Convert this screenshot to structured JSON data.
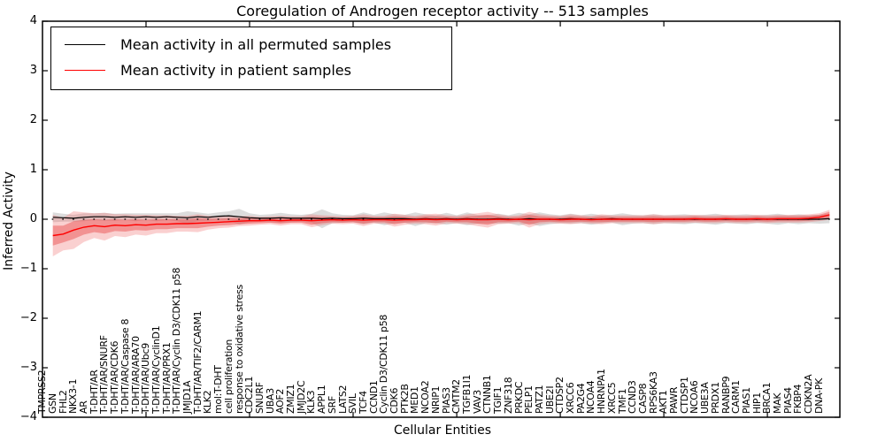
{
  "chart_data": {
    "type": "line",
    "title": "Coregulation of Androgen receptor activity -- 513 samples",
    "xlabel": "Cellular Entities",
    "ylabel": "Inferred Activity",
    "ylim": [
      -4,
      4
    ],
    "ytick_labels": [
      "4",
      "3",
      "2",
      "1",
      "0",
      "−1",
      "−2",
      "−3",
      "−4"
    ],
    "grid": false,
    "legend_position": "upper left",
    "zero_line": {
      "style": "dotted",
      "color": "#000000",
      "y": 0
    },
    "categories": [
      "TMPRSS2",
      "GSN",
      "FHL2",
      "NKX3-1",
      "AR",
      "T-DHT/AR",
      "T-DHT/AR/SNURF",
      "T-DHT/AR/CDK6",
      "T-DHT/AR/Caspase 8",
      "T-DHT/AR/ARA70",
      "T-DHT/AR/Ubc9",
      "T-DHT/AR/CyclinD1",
      "T-DHT/AR/PRX1",
      "T-DHT/AR/Cyclin D3/CDK11 p58",
      "JMJD1A",
      "T-DHT/AR/TIF2/CARM1",
      "KLK2",
      "mol:T-DHT",
      "cell proliferation",
      "response to oxidative stress",
      "CDC2L1",
      "SNURF",
      "UBA3",
      "AOF2",
      "ZMIZ1",
      "JMJD2C",
      "KLK3",
      "APPL1",
      "SRF",
      "LATS2",
      "SVIL",
      "TCF4",
      "CCND1",
      "Cyclin D3/CDK11 p58",
      "CDK6",
      "PTK2B",
      "MED1",
      "NCOA2",
      "NRIP1",
      "PIAS3",
      "CMTM2",
      "TGFB1I1",
      "VAV3",
      "CTNNB1",
      "TGIF1",
      "ZNF318",
      "PRKDC",
      "PELP1",
      "PATZ1",
      "UBE2I",
      "CTDSP2",
      "XRCC6",
      "PA2G4",
      "NCOA4",
      "HNRNPA1",
      "XRCC5",
      "TMF1",
      "CCND3",
      "CASP8",
      "RPS6KA3",
      "AKT1",
      "PAWR",
      "CTDSP1",
      "NCOA6",
      "UBE3A",
      "PRDX1",
      "RANBP9",
      "CARM1",
      "PIAS1",
      "HIP1",
      "BRCA1",
      "MAK",
      "PIAS4",
      "FKBP4",
      "CDKN2A",
      "DNA-PK"
    ],
    "series": [
      {
        "name": "Mean activity in all permuted samples",
        "color": "#000000",
        "band_color": "rgba(130,130,130,0.28)",
        "values": [
          0.04,
          0.03,
          0.02,
          0.04,
          0.05,
          0.05,
          0.04,
          0.05,
          0.04,
          0.05,
          0.04,
          0.05,
          0.04,
          0.03,
          0.05,
          0.04,
          0.06,
          0.07,
          0.05,
          0.03,
          0.02,
          0.02,
          0.03,
          0.02,
          0.02,
          0.02,
          0.01,
          0.02,
          0.01,
          0.01,
          0.02,
          0.01,
          0.01,
          0.01,
          0.01,
          0.0,
          0.01,
          0.0,
          0.01,
          0.0,
          0.01,
          0.0,
          0.0,
          0.01,
          0.0,
          0.0,
          0.01,
          0.0,
          0.0,
          0.0,
          0.01,
          0.0,
          0.0,
          0.0,
          0.01,
          0.0,
          0.0,
          0.0,
          0.0,
          0.0,
          0.0,
          0.0,
          0.0,
          0.0,
          0.0,
          0.0,
          0.0,
          0.0,
          0.0,
          0.0,
          0.0,
          0.0,
          0.0,
          0.0,
          0.0,
          0.01
        ],
        "band_halfwidth": [
          0.1,
          0.08,
          0.07,
          0.08,
          0.07,
          0.08,
          0.07,
          0.07,
          0.08,
          0.07,
          0.08,
          0.07,
          0.08,
          0.13,
          0.09,
          0.07,
          0.08,
          0.09,
          0.16,
          0.09,
          0.07,
          0.08,
          0.1,
          0.08,
          0.07,
          0.09,
          0.19,
          0.1,
          0.08,
          0.07,
          0.12,
          0.08,
          0.13,
          0.09,
          0.08,
          0.14,
          0.09,
          0.08,
          0.12,
          0.08,
          0.13,
          0.09,
          0.08,
          0.1,
          0.08,
          0.13,
          0.09,
          0.14,
          0.1,
          0.08,
          0.1,
          0.08,
          0.11,
          0.08,
          0.08,
          0.12,
          0.09,
          0.08,
          0.1,
          0.08,
          0.09,
          0.1,
          0.08,
          0.09,
          0.11,
          0.08,
          0.09,
          0.1,
          0.08,
          0.09,
          0.11,
          0.08,
          0.1,
          0.08,
          0.09,
          0.09
        ]
      },
      {
        "name": "Mean activity in patient samples",
        "color": "#ff0000",
        "band_inner_color": "rgba(230,60,60,0.42)",
        "band_outer_color": "rgba(240,100,100,0.30)",
        "values": [
          -0.33,
          -0.3,
          -0.22,
          -0.16,
          -0.13,
          -0.15,
          -0.12,
          -0.13,
          -0.11,
          -0.12,
          -0.1,
          -0.1,
          -0.09,
          -0.09,
          -0.08,
          -0.07,
          -0.06,
          -0.05,
          -0.04,
          -0.03,
          -0.03,
          -0.02,
          -0.03,
          -0.02,
          -0.02,
          -0.03,
          -0.02,
          -0.01,
          -0.02,
          -0.01,
          -0.02,
          -0.01,
          -0.01,
          -0.02,
          -0.01,
          -0.01,
          0.0,
          -0.01,
          0.0,
          -0.01,
          0.0,
          -0.01,
          -0.01,
          0.0,
          -0.01,
          0.0,
          -0.01,
          0.0,
          0.0,
          -0.01,
          0.0,
          0.0,
          -0.01,
          0.0,
          0.0,
          0.0,
          0.0,
          0.0,
          0.0,
          0.0,
          0.0,
          0.0,
          0.01,
          0.0,
          0.0,
          0.01,
          0.0,
          0.0,
          0.01,
          0.0,
          0.01,
          0.01,
          0.01,
          0.02,
          0.04,
          0.09
        ],
        "band_inner_halfwidth": [
          0.2,
          0.17,
          0.18,
          0.15,
          0.13,
          0.14,
          0.12,
          0.12,
          0.11,
          0.11,
          0.1,
          0.1,
          0.09,
          0.09,
          0.1,
          0.08,
          0.07,
          0.07,
          0.06,
          0.06,
          0.05,
          0.05,
          0.06,
          0.05,
          0.05,
          0.08,
          0.06,
          0.05,
          0.05,
          0.05,
          0.07,
          0.05,
          0.05,
          0.08,
          0.06,
          0.05,
          0.06,
          0.07,
          0.05,
          0.05,
          0.06,
          0.08,
          0.1,
          0.06,
          0.05,
          0.05,
          0.1,
          0.06,
          0.05,
          0.05,
          0.06,
          0.05,
          0.05,
          0.06,
          0.05,
          0.05,
          0.05,
          0.05,
          0.06,
          0.05,
          0.05,
          0.05,
          0.05,
          0.05,
          0.05,
          0.05,
          0.05,
          0.05,
          0.05,
          0.05,
          0.05,
          0.05,
          0.05,
          0.05,
          0.05,
          0.06
        ],
        "band_outer_halfwidth": [
          0.42,
          0.33,
          0.38,
          0.3,
          0.25,
          0.28,
          0.22,
          0.23,
          0.2,
          0.21,
          0.18,
          0.18,
          0.16,
          0.16,
          0.18,
          0.14,
          0.12,
          0.12,
          0.1,
          0.1,
          0.08,
          0.08,
          0.1,
          0.08,
          0.08,
          0.13,
          0.1,
          0.08,
          0.08,
          0.08,
          0.12,
          0.08,
          0.08,
          0.13,
          0.1,
          0.08,
          0.1,
          0.12,
          0.08,
          0.08,
          0.1,
          0.13,
          0.16,
          0.1,
          0.08,
          0.08,
          0.16,
          0.1,
          0.08,
          0.08,
          0.1,
          0.08,
          0.08,
          0.1,
          0.08,
          0.08,
          0.08,
          0.08,
          0.1,
          0.08,
          0.08,
          0.08,
          0.08,
          0.08,
          0.08,
          0.08,
          0.08,
          0.08,
          0.08,
          0.08,
          0.08,
          0.08,
          0.08,
          0.08,
          0.08,
          0.1
        ]
      }
    ]
  }
}
